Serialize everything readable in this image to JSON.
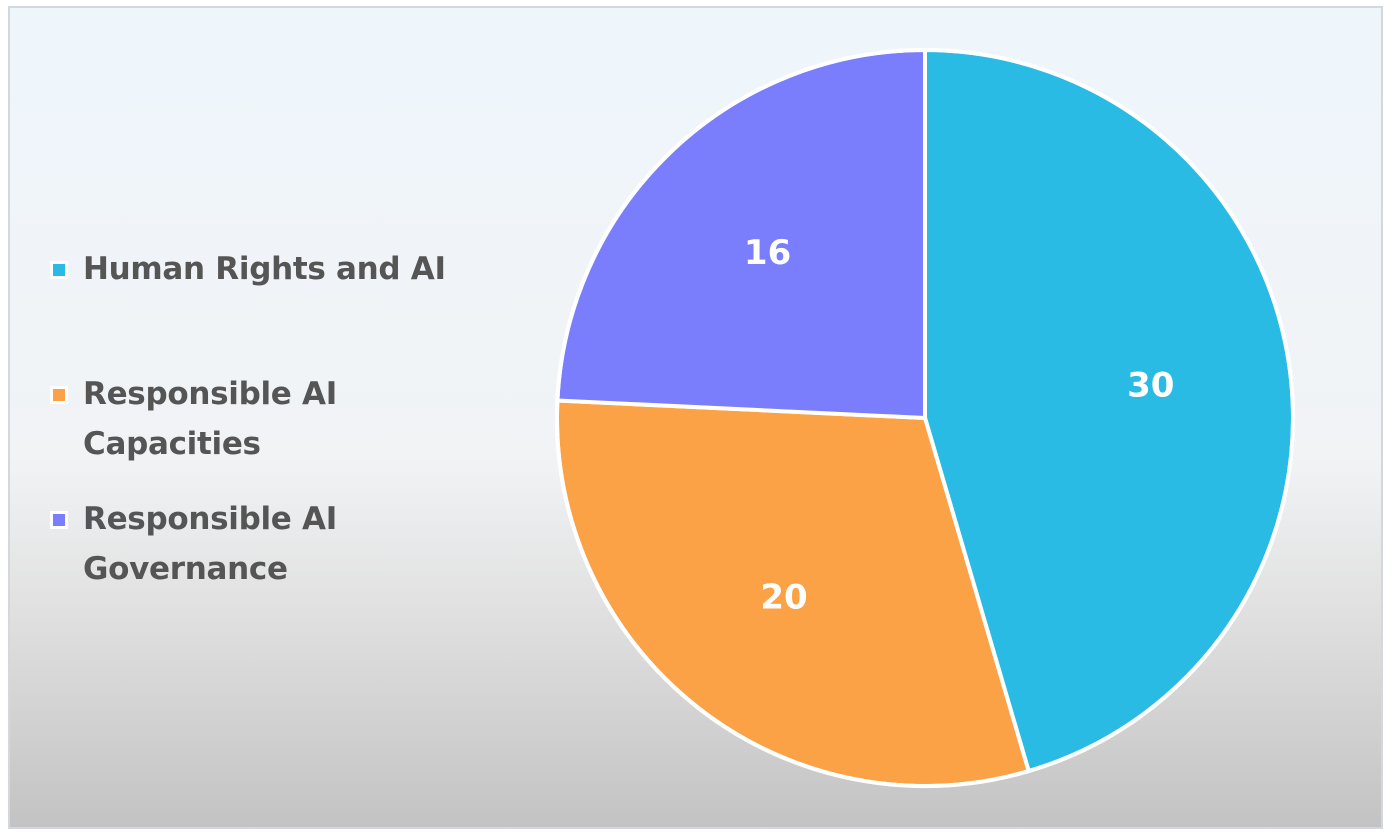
{
  "chart_data": {
    "type": "pie",
    "categories": [
      "Human Rights and AI",
      "Responsible AI Capacities",
      "Responsible AI Governance"
    ],
    "values": [
      30,
      20,
      16
    ],
    "data_labels": [
      "30",
      "20",
      "16"
    ],
    "colors": [
      "#29bbe3",
      "#fba146",
      "#7a7dfc"
    ],
    "start_angle_deg": 0,
    "direction": "clockwise",
    "legend_position": "left",
    "title": ""
  },
  "legend": {
    "items": [
      {
        "label": "Human Rights and AI",
        "color": "#29bbe3"
      },
      {
        "label": "Responsible AI Capacities",
        "color": "#fba146"
      },
      {
        "label": "Responsible AI Governance",
        "color": "#7a7dfc"
      }
    ]
  }
}
